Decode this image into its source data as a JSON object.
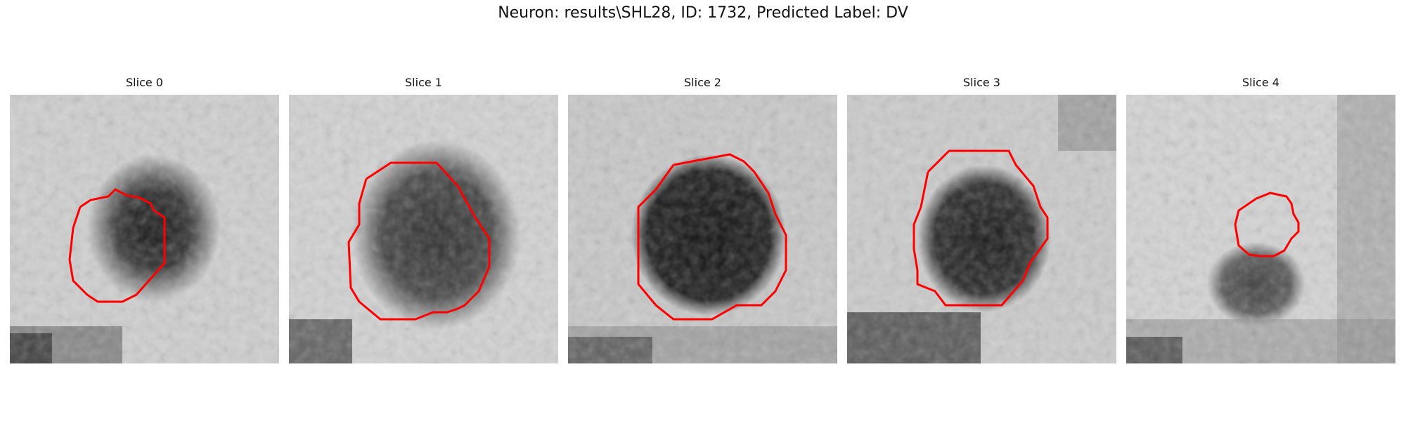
{
  "figure": {
    "title": "Neuron: results\\SHL28, ID: 1732, Predicted Label: DV"
  },
  "panels": [
    {
      "label": "Slice 0"
    },
    {
      "label": "Slice 1"
    },
    {
      "label": "Slice 2"
    },
    {
      "label": "Slice 3"
    },
    {
      "label": "Slice 4"
    }
  ],
  "colors": {
    "contour": "#ff0000",
    "background": "#ffffff"
  }
}
